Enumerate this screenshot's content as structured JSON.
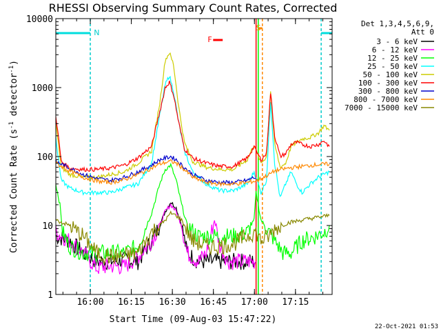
{
  "chart_data": {
    "type": "line",
    "title": "RHESSI Observing Summary Count Rates, Corrected",
    "xlabel": "Start Time (09-Aug-03 15:47:22)",
    "ylabel_main": "Corrected Count Rate (s",
    "ylabel_sup1": "-1",
    "ylabel_mid": " detector",
    "ylabel_sup2": "-1",
    "ylabel_end": ")",
    "yscale": "log",
    "ylim": [
      1,
      10000
    ],
    "xlim_minutes": [
      0,
      101
    ],
    "x_ticks": [
      {
        "t": 12.6,
        "label": "16:00"
      },
      {
        "t": 27.6,
        "label": "16:15"
      },
      {
        "t": 42.6,
        "label": "16:30"
      },
      {
        "t": 57.6,
        "label": "16:45"
      },
      {
        "t": 72.6,
        "label": "17:00"
      },
      {
        "t": 87.6,
        "label": "17:15"
      }
    ],
    "y_ticks": [
      {
        "v": 1,
        "label": "1"
      },
      {
        "v": 10,
        "label": "10"
      },
      {
        "v": 100,
        "label": "100"
      },
      {
        "v": 1000,
        "label": "1000"
      },
      {
        "v": 10000,
        "label": "10000"
      }
    ],
    "legend_header": [
      "Det 1,3,4,5,6,9,",
      "Att 0"
    ],
    "series": [
      {
        "name": "3 - 6 keV",
        "color": "#000000",
        "points": [
          [
            0,
            7
          ],
          [
            5,
            6
          ],
          [
            10,
            4
          ],
          [
            15,
            3
          ],
          [
            20,
            3
          ],
          [
            25,
            3.2
          ],
          [
            30,
            3
          ],
          [
            35,
            6
          ],
          [
            38,
            10
          ],
          [
            40,
            16
          ],
          [
            42,
            22
          ],
          [
            44,
            18
          ],
          [
            46,
            10
          ],
          [
            48,
            4
          ],
          [
            52,
            3
          ],
          [
            58,
            3
          ],
          [
            62,
            3
          ],
          [
            66,
            3
          ],
          [
            70,
            3
          ],
          [
            72.5,
            3
          ],
          [
            73.2,
            3
          ]
        ]
      },
      {
        "name": "6 - 12 keV",
        "color": "#ff00ff",
        "points": [
          [
            0,
            8
          ],
          [
            5,
            6
          ],
          [
            10,
            4
          ],
          [
            15,
            2.4
          ],
          [
            20,
            2.6
          ],
          [
            25,
            2.5
          ],
          [
            30,
            3.5
          ],
          [
            35,
            6
          ],
          [
            38,
            10
          ],
          [
            40,
            16
          ],
          [
            42,
            20
          ],
          [
            44,
            16
          ],
          [
            46,
            10
          ],
          [
            48,
            4
          ],
          [
            52,
            3
          ],
          [
            55,
            4
          ],
          [
            58,
            12
          ],
          [
            60,
            5
          ],
          [
            63,
            3
          ],
          [
            66,
            3
          ],
          [
            70,
            3
          ],
          [
            72.5,
            3
          ],
          [
            73.2,
            3
          ]
        ]
      },
      {
        "name": "12 - 25 keV",
        "color": "#00ff00",
        "points": [
          [
            0,
            40
          ],
          [
            1.5,
            20
          ],
          [
            2.5,
            8
          ],
          [
            5,
            5
          ],
          [
            10,
            4
          ],
          [
            15,
            4
          ],
          [
            20,
            4
          ],
          [
            25,
            4
          ],
          [
            30,
            5
          ],
          [
            35,
            15
          ],
          [
            38,
            40
          ],
          [
            40,
            65
          ],
          [
            42,
            75
          ],
          [
            44,
            45
          ],
          [
            46,
            20
          ],
          [
            48,
            10
          ],
          [
            52,
            7
          ],
          [
            58,
            7
          ],
          [
            62,
            7
          ],
          [
            66,
            7
          ],
          [
            70,
            8
          ],
          [
            72.5,
            12
          ],
          [
            73.2,
            30
          ],
          [
            75,
            12
          ],
          [
            78,
            8
          ],
          [
            80,
            6
          ],
          [
            83,
            4
          ],
          [
            86,
            4
          ],
          [
            90,
            6
          ],
          [
            95,
            7
          ],
          [
            98,
            8
          ],
          [
            100,
            10
          ]
        ]
      },
      {
        "name": "25 - 50 keV",
        "color": "#00ffff",
        "points": [
          [
            0,
            180
          ],
          [
            2,
            45
          ],
          [
            5,
            35
          ],
          [
            10,
            30
          ],
          [
            15,
            30
          ],
          [
            20,
            30
          ],
          [
            25,
            35
          ],
          [
            30,
            40
          ],
          [
            35,
            80
          ],
          [
            38,
            400
          ],
          [
            40,
            1100
          ],
          [
            41.5,
            1500
          ],
          [
            43,
            900
          ],
          [
            45,
            300
          ],
          [
            47,
            120
          ],
          [
            50,
            60
          ],
          [
            55,
            40
          ],
          [
            60,
            32
          ],
          [
            65,
            32
          ],
          [
            70,
            40
          ],
          [
            72.5,
            60
          ],
          [
            73.2,
            50
          ],
          [
            75,
            30
          ],
          [
            77,
            45
          ],
          [
            78.5,
            650
          ],
          [
            80,
            80
          ],
          [
            82,
            25
          ],
          [
            84,
            40
          ],
          [
            86,
            60
          ],
          [
            88,
            40
          ],
          [
            90,
            30
          ],
          [
            93,
            40
          ],
          [
            96,
            50
          ],
          [
            98,
            55
          ],
          [
            100,
            60
          ]
        ]
      },
      {
        "name": "50 - 100 keV",
        "color": "#cccc00",
        "points": [
          [
            0,
            300
          ],
          [
            2,
            70
          ],
          [
            5,
            55
          ],
          [
            10,
            50
          ],
          [
            15,
            50
          ],
          [
            20,
            55
          ],
          [
            25,
            60
          ],
          [
            30,
            80
          ],
          [
            35,
            120
          ],
          [
            38,
            600
          ],
          [
            40,
            2500
          ],
          [
            41.5,
            3200
          ],
          [
            43,
            2200
          ],
          [
            45,
            500
          ],
          [
            47,
            160
          ],
          [
            50,
            85
          ],
          [
            55,
            70
          ],
          [
            60,
            65
          ],
          [
            65,
            65
          ],
          [
            70,
            90
          ],
          [
            72.5,
            150
          ],
          [
            73.2,
            120
          ],
          [
            75,
            80
          ],
          [
            77,
            100
          ],
          [
            78.5,
            900
          ],
          [
            80,
            150
          ],
          [
            82,
            70
          ],
          [
            84,
            80
          ],
          [
            86,
            140
          ],
          [
            88,
            160
          ],
          [
            90,
            180
          ],
          [
            93,
            190
          ],
          [
            96,
            220
          ],
          [
            98,
            280
          ],
          [
            100,
            240
          ]
        ]
      },
      {
        "name": "100 - 300 keV",
        "color": "#ff0000",
        "points": [
          [
            0,
            400
          ],
          [
            2,
            85
          ],
          [
            5,
            68
          ],
          [
            10,
            65
          ],
          [
            15,
            65
          ],
          [
            20,
            68
          ],
          [
            25,
            75
          ],
          [
            30,
            95
          ],
          [
            35,
            140
          ],
          [
            38,
            450
          ],
          [
            40,
            1000
          ],
          [
            41.5,
            1200
          ],
          [
            43,
            800
          ],
          [
            45,
            300
          ],
          [
            47,
            130
          ],
          [
            50,
            95
          ],
          [
            55,
            80
          ],
          [
            60,
            72
          ],
          [
            65,
            72
          ],
          [
            70,
            95
          ],
          [
            72.5,
            140
          ],
          [
            73.2,
            120
          ],
          [
            75,
            90
          ],
          [
            77,
            110
          ],
          [
            78.5,
            850
          ],
          [
            80,
            200
          ],
          [
            82,
            100
          ],
          [
            84,
            110
          ],
          [
            86,
            150
          ],
          [
            88,
            160
          ],
          [
            90,
            150
          ],
          [
            93,
            140
          ],
          [
            96,
            150
          ],
          [
            98,
            170
          ],
          [
            100,
            140
          ]
        ]
      },
      {
        "name": "300 - 800 keV",
        "color": "#0000cc",
        "points": [
          [
            0,
            85
          ],
          [
            5,
            68
          ],
          [
            10,
            55
          ],
          [
            15,
            48
          ],
          [
            20,
            45
          ],
          [
            25,
            50
          ],
          [
            30,
            60
          ],
          [
            35,
            75
          ],
          [
            38,
            90
          ],
          [
            40,
            95
          ],
          [
            42,
            100
          ],
          [
            44,
            90
          ],
          [
            46,
            75
          ],
          [
            50,
            55
          ],
          [
            55,
            45
          ],
          [
            60,
            42
          ],
          [
            65,
            42
          ],
          [
            70,
            45
          ],
          [
            72.5,
            50
          ],
          [
            73.2,
            48
          ]
        ]
      },
      {
        "name": "800 - 7000 keV",
        "color": "#ff8800",
        "points": [
          [
            0,
            80
          ],
          [
            5,
            62
          ],
          [
            10,
            50
          ],
          [
            15,
            44
          ],
          [
            20,
            42
          ],
          [
            25,
            46
          ],
          [
            30,
            55
          ],
          [
            35,
            68
          ],
          [
            38,
            78
          ],
          [
            40,
            82
          ],
          [
            42,
            85
          ],
          [
            44,
            80
          ],
          [
            46,
            70
          ],
          [
            50,
            50
          ],
          [
            55,
            42
          ],
          [
            60,
            40
          ],
          [
            65,
            40
          ],
          [
            70,
            42
          ],
          [
            72.5,
            44
          ],
          [
            73.2,
            44
          ],
          [
            75,
            48
          ],
          [
            78,
            55
          ],
          [
            80,
            62
          ],
          [
            85,
            68
          ],
          [
            90,
            72
          ],
          [
            95,
            76
          ],
          [
            100,
            78
          ]
        ]
      },
      {
        "name": "7000 - 15000 keV",
        "color": "#888800",
        "points": [
          [
            0,
            12
          ],
          [
            5,
            10
          ],
          [
            10,
            7
          ],
          [
            15,
            4
          ],
          [
            20,
            3.5
          ],
          [
            25,
            3.6
          ],
          [
            30,
            4
          ],
          [
            35,
            8
          ],
          [
            38,
            10
          ],
          [
            40,
            12
          ],
          [
            42,
            15
          ],
          [
            44,
            14
          ],
          [
            46,
            12
          ],
          [
            50,
            6
          ],
          [
            55,
            5
          ],
          [
            60,
            5
          ],
          [
            65,
            5.5
          ],
          [
            70,
            7
          ],
          [
            72.5,
            8
          ],
          [
            73.2,
            8
          ],
          [
            75,
            6
          ],
          [
            78,
            7
          ],
          [
            80,
            9
          ],
          [
            85,
            11
          ],
          [
            90,
            12
          ],
          [
            95,
            13
          ],
          [
            100,
            14
          ]
        ]
      }
    ],
    "annotations": [
      {
        "text": "N",
        "color": "#00cccc",
        "t": 13.4
      },
      {
        "text": "F",
        "color": "#ff0000",
        "t": 55
      },
      {
        "text": "S",
        "color": "#ff8800",
        "t": 72.7
      }
    ],
    "night_intervals": [
      [
        0,
        12.6
      ],
      [
        97,
        101
      ]
    ],
    "flare_marker": {
      "t_start": 57.5,
      "t_end": 61
    },
    "saa_marker": {
      "t_start": 74,
      "t_end": 75.5
    },
    "vlines": [
      {
        "t": 12.6,
        "color": "#00cccc",
        "style": "dashed"
      },
      {
        "t": 73.2,
        "color": "#ff0000",
        "style": "solid"
      },
      {
        "t": 74.0,
        "color": "#00ff00",
        "style": "solid"
      },
      {
        "t": 75.5,
        "color": "#ff8800",
        "style": "dashed"
      },
      {
        "t": 97.0,
        "color": "#00cccc",
        "style": "dashed"
      }
    ],
    "timestamp": "22-Oct-2021 01:53"
  }
}
